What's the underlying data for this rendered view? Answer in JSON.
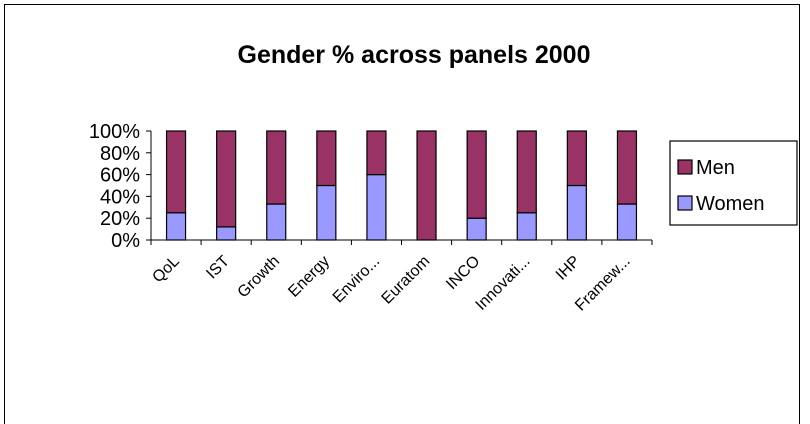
{
  "chart_data": {
    "type": "bar",
    "stacked": true,
    "percent": true,
    "title": "Gender % across panels 2000",
    "xlabel": "",
    "ylabel": "",
    "ylim": [
      0,
      100
    ],
    "yticks": [
      "0%",
      "20%",
      "40%",
      "60%",
      "80%",
      "100%"
    ],
    "grid": false,
    "legend_position": "right",
    "categories": [
      "QoL",
      "IST",
      "Growth",
      "Energy",
      "Enviro...",
      "Euratom",
      "INCO",
      "Innovati...",
      "IHP",
      "Framew..."
    ],
    "series": [
      {
        "name": "Women",
        "color": "#9999ff",
        "values": [
          25,
          12,
          33,
          50,
          60,
          0,
          20,
          25,
          50,
          33
        ]
      },
      {
        "name": "Men",
        "color": "#993366",
        "values": [
          75,
          88,
          67,
          50,
          40,
          100,
          80,
          75,
          50,
          67
        ]
      }
    ],
    "legend": [
      "Men",
      "Women"
    ]
  }
}
